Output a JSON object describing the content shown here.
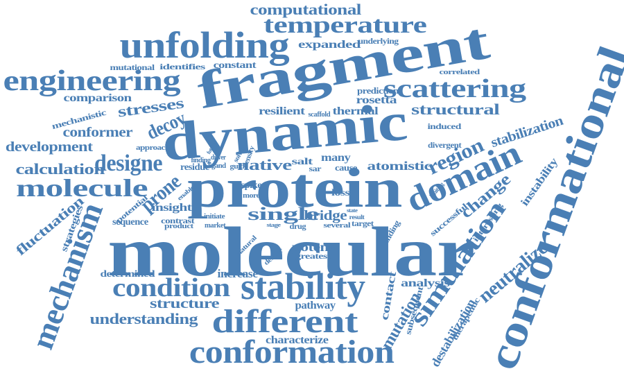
{
  "color": "#4a7fb5",
  "words": [
    {
      "id": "computational",
      "text": "computational"
    },
    {
      "id": "temperature",
      "text": "temperature"
    },
    {
      "id": "unfolding",
      "text": "unfolding"
    },
    {
      "id": "fragment",
      "text": "fragment"
    },
    {
      "id": "expanded",
      "text": "expanded"
    },
    {
      "id": "underlying",
      "text": "underlying"
    },
    {
      "id": "mutational",
      "text": "mutational"
    },
    {
      "id": "identifies",
      "text": "identifies"
    },
    {
      "id": "constant",
      "text": "constant"
    },
    {
      "id": "engineering",
      "text": "engineering"
    },
    {
      "id": "correlated",
      "text": "correlated"
    },
    {
      "id": "scattering",
      "text": "scattering"
    },
    {
      "id": "prediction",
      "text": "prediction"
    },
    {
      "id": "comparison",
      "text": "comparison"
    },
    {
      "id": "rosetta",
      "text": "rosetta"
    },
    {
      "id": "stresses",
      "text": "stresses"
    },
    {
      "id": "resilient",
      "text": "resilient"
    },
    {
      "id": "scaffold",
      "text": "scaffold"
    },
    {
      "id": "thermal",
      "text": "thermal"
    },
    {
      "id": "structural",
      "text": "structural"
    },
    {
      "id": "mechanistic",
      "text": "mechanistic"
    },
    {
      "id": "decoy",
      "text": "decoy"
    },
    {
      "id": "induced",
      "text": "induced"
    },
    {
      "id": "conformer",
      "text": "conformer"
    },
    {
      "id": "dynamic",
      "text": "dynamic"
    },
    {
      "id": "stabilization",
      "text": "stabilization"
    },
    {
      "id": "development",
      "text": "development"
    },
    {
      "id": "divergent",
      "text": "divergent"
    },
    {
      "id": "approach",
      "text": "approach"
    },
    {
      "id": "designe",
      "text": "designe"
    },
    {
      "id": "finding",
      "text": "finding"
    },
    {
      "id": "driver",
      "text": "driver"
    },
    {
      "id": "future",
      "text": "future"
    },
    {
      "id": "solvent",
      "text": "solvent"
    },
    {
      "id": "density",
      "text": "density"
    },
    {
      "id": "region",
      "text": "region"
    },
    {
      "id": "calculation",
      "text": "calculation"
    },
    {
      "id": "ligand",
      "text": "ligand"
    },
    {
      "id": "residue",
      "text": "residue"
    },
    {
      "id": "guide",
      "text": "guide"
    },
    {
      "id": "native",
      "text": "native"
    },
    {
      "id": "salt",
      "text": "salt"
    },
    {
      "id": "many",
      "text": "many"
    },
    {
      "id": "sar",
      "text": "sar"
    },
    {
      "id": "cause",
      "text": "cause"
    },
    {
      "id": "atomistic",
      "text": "atomistic"
    },
    {
      "id": "domain",
      "text": "domain"
    },
    {
      "id": "conformational",
      "text": "conformational"
    },
    {
      "id": "molecule",
      "text": "molecule"
    },
    {
      "id": "prone",
      "text": "prone"
    },
    {
      "id": "protein",
      "text": "protein"
    },
    {
      "id": "change",
      "text": "change"
    },
    {
      "id": "instability",
      "text": "instability"
    },
    {
      "id": "fluctuation",
      "text": "fluctuation"
    },
    {
      "id": "strategies",
      "text": "strategies"
    },
    {
      "id": "potential",
      "text": "potential"
    },
    {
      "id": "enable",
      "text": "enable"
    },
    {
      "id": "spike",
      "text": "spike"
    },
    {
      "id": "more",
      "text": "more"
    },
    {
      "id": "loss",
      "text": "loss"
    },
    {
      "id": "limiting",
      "text": "limiting"
    },
    {
      "id": "insight",
      "text": "insight"
    },
    {
      "id": "single",
      "text": "single"
    },
    {
      "id": "bridge",
      "text": "bridge"
    },
    {
      "id": "state",
      "text": "state"
    },
    {
      "id": "result",
      "text": "result"
    },
    {
      "id": "sequence",
      "text": "sequence"
    },
    {
      "id": "contrast",
      "text": "contrast"
    },
    {
      "id": "product",
      "text": "product"
    },
    {
      "id": "initiate",
      "text": "initiate"
    },
    {
      "id": "market",
      "text": "market"
    },
    {
      "id": "stage",
      "text": "stage"
    },
    {
      "id": "drug",
      "text": "drug"
    },
    {
      "id": "several",
      "text": "several"
    },
    {
      "id": "target",
      "text": "target"
    },
    {
      "id": "binding",
      "text": "binding"
    },
    {
      "id": "successful",
      "text": "successful"
    },
    {
      "id": "interesting",
      "text": "interesting"
    },
    {
      "id": "mechanism",
      "text": "mechanism"
    },
    {
      "id": "molecular",
      "text": "molecular"
    },
    {
      "id": "simulation",
      "text": "simulation"
    },
    {
      "id": "neutralize",
      "text": "neutralize"
    },
    {
      "id": "natural",
      "text": "natural"
    },
    {
      "id": "potent",
      "text": "potent"
    },
    {
      "id": "deeper",
      "text": "deeper"
    },
    {
      "id": "greatest",
      "text": "greatest"
    },
    {
      "id": "determined",
      "text": "determined"
    },
    {
      "id": "increase",
      "text": "increase"
    },
    {
      "id": "analysis",
      "text": "analysis"
    },
    {
      "id": "condition",
      "text": "condition"
    },
    {
      "id": "stability",
      "text": "stability"
    },
    {
      "id": "contact",
      "text": "contact"
    },
    {
      "id": "mutation",
      "text": "mutation"
    },
    {
      "id": "subsequent",
      "text": "subsequent"
    },
    {
      "id": "therapeutic",
      "text": "therapeutic"
    },
    {
      "id": "structure",
      "text": "structure"
    },
    {
      "id": "pathway",
      "text": "pathway"
    },
    {
      "id": "understanding",
      "text": "understanding"
    },
    {
      "id": "different",
      "text": "different"
    },
    {
      "id": "destabilization",
      "text": "destabilization"
    },
    {
      "id": "characterize",
      "text": "characterize"
    },
    {
      "id": "conformation",
      "text": "conformation"
    }
  ]
}
